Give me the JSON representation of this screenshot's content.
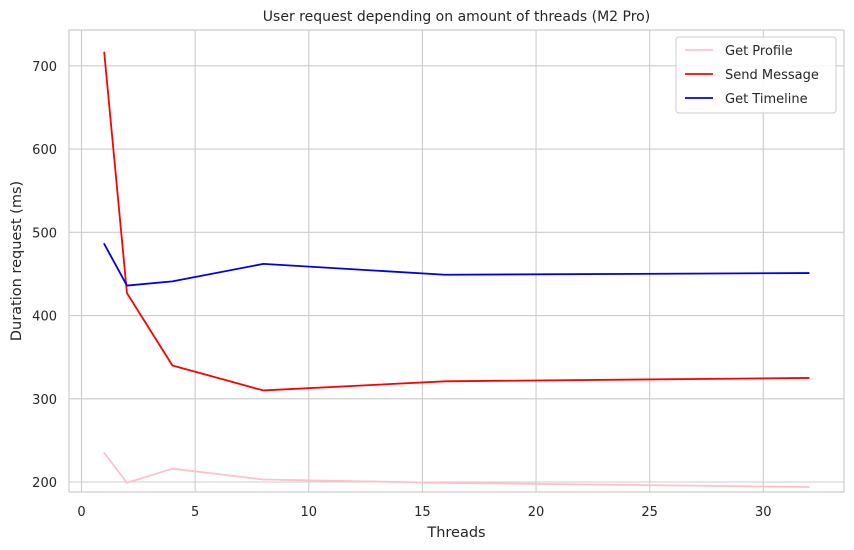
{
  "chart_data": {
    "type": "line",
    "title": "User request depending on amount of threads (M2 Pro)",
    "xlabel": "Threads",
    "ylabel": "Duration request (ms)",
    "xlim": [
      -0.55,
      33.55
    ],
    "ylim": [
      188,
      743
    ],
    "xticks": [
      0,
      5,
      10,
      15,
      20,
      25,
      30
    ],
    "yticks": [
      200,
      300,
      400,
      500,
      600,
      700
    ],
    "grid": true,
    "legend_position": "top-right",
    "x": [
      1,
      2,
      4,
      8,
      16,
      32
    ],
    "series": [
      {
        "name": "Get Profile",
        "color": "#ffc0cb",
        "values": [
          235,
          199,
          216,
          203,
          199,
          194
        ]
      },
      {
        "name": "Send Message",
        "color": "#ff0000",
        "values": [
          716,
          427,
          340,
          310,
          321,
          325
        ]
      },
      {
        "name": "Get Timeline",
        "color": "#0000ee",
        "values": [
          486,
          436,
          441,
          462,
          449,
          451
        ]
      }
    ]
  }
}
